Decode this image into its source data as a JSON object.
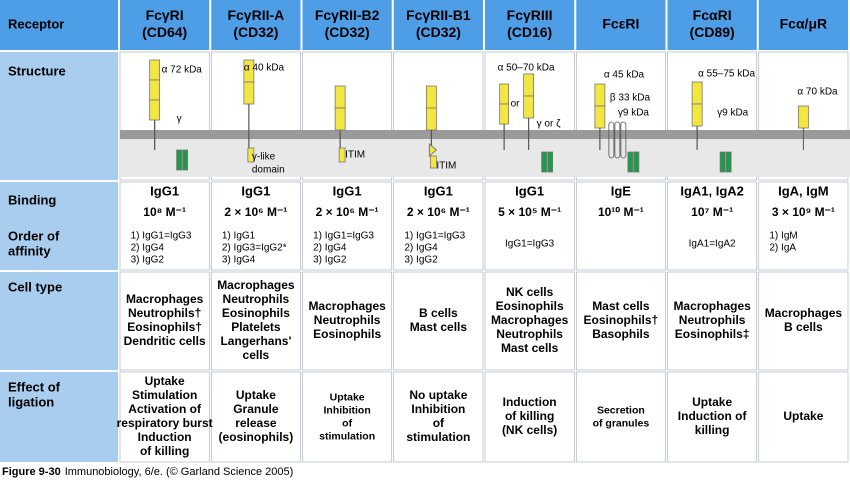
{
  "receptor_header": "Receptor",
  "row_labels": {
    "structure": "Structure",
    "binding": "Binding",
    "affinity": [
      "Order of",
      "affinity"
    ],
    "cell_type": "Cell type",
    "effect": [
      "Effect of",
      "ligation"
    ]
  },
  "columns": [
    {
      "name": [
        "FcγRI",
        "(CD64)"
      ],
      "structure": [
        "α 72 kDa",
        "γ"
      ],
      "ligand": "IgG1",
      "affinity": "10⁸ M⁻¹",
      "order": [
        "1) IgG1=IgG3",
        "2) IgG4",
        "3) IgG2"
      ],
      "cells": [
        "Macrophages",
        "Neutrophils†",
        "Eosinophils†",
        "Dendritic cells"
      ],
      "effect": [
        "Uptake",
        "Stimulation",
        "Activation of",
        "respiratory burst",
        "Induction",
        "of killing"
      ]
    },
    {
      "name": [
        "FcγRII-A",
        "(CD32)"
      ],
      "structure": [
        "α 40 kDa",
        "γ-like",
        "domain"
      ],
      "ligand": "IgG1",
      "affinity": "2 × 10⁶ M⁻¹",
      "order": [
        "1) IgG1",
        "2) IgG3=IgG2*",
        "3) IgG4"
      ],
      "cells": [
        "Macrophages",
        "Neutrophils",
        "Eosinophils",
        "Platelets",
        "Langerhans'",
        "cells"
      ],
      "effect": [
        "Uptake",
        "Granule",
        "release",
        "(eosinophils)"
      ]
    },
    {
      "name": [
        "FcγRII-B2",
        "(CD32)"
      ],
      "structure": [
        "ITIM"
      ],
      "ligand": "IgG1",
      "affinity": "2 × 10⁶ M⁻¹",
      "order": [
        "1) IgG1=IgG3",
        "2) IgG4",
        "3) IgG2"
      ],
      "cells": [
        "Macrophages",
        "Neutrophils",
        "Eosinophils"
      ],
      "effect": [
        "Uptake",
        "Inhibition",
        "of",
        "stimulation"
      ]
    },
    {
      "name": [
        "FcγRII-B1",
        "(CD32)"
      ],
      "structure": [
        "ITIM"
      ],
      "ligand": "IgG1",
      "affinity": "2 × 10⁶ M⁻¹",
      "order": [
        "1) IgG1=IgG3",
        "2) IgG4",
        "3) IgG2"
      ],
      "cells": [
        "B cells",
        "Mast cells"
      ],
      "effect": [
        "No uptake",
        "Inhibition",
        "of",
        "stimulation"
      ]
    },
    {
      "name": [
        "FcγRIII",
        "(CD16)"
      ],
      "structure": [
        "α 50–70 kDa",
        "or",
        "γ or ζ"
      ],
      "ligand": "IgG1",
      "affinity": "5 × 10⁵ M⁻¹",
      "order": [
        "IgG1=IgG3"
      ],
      "cells": [
        "NK cells",
        "Eosinophils",
        "Macrophages",
        "Neutrophils",
        "Mast cells"
      ],
      "effect": [
        "Induction",
        "of killing",
        "(NK cells)"
      ]
    },
    {
      "name": [
        "FcεRI"
      ],
      "structure": [
        "α 45 kDa",
        "β 33 kDa",
        "γ9 kDa"
      ],
      "ligand": "IgE",
      "affinity": "10¹⁰ M⁻¹",
      "order": [],
      "cells": [
        "Mast cells",
        "Eosinophils†",
        "Basophils"
      ],
      "effect": [
        "Secretion",
        "of granules"
      ]
    },
    {
      "name": [
        "FcαRI",
        "(CD89)"
      ],
      "structure": [
        "α 55–75 kDa",
        "γ9 kDa"
      ],
      "ligand": "IgA1, IgA2",
      "affinity": "10⁷ M⁻¹",
      "order": [
        "IgA1=IgA2"
      ],
      "cells": [
        "Macrophages",
        "Neutrophils",
        "Eosinophils‡"
      ],
      "effect": [
        "Uptake",
        "Induction of",
        "killing"
      ]
    },
    {
      "name": [
        "Fcα/μR"
      ],
      "structure": [
        "α 70 kDa"
      ],
      "ligand": "IgA, IgM",
      "affinity": "3 × 10⁹ M⁻¹",
      "order": [
        "1) IgM",
        "2) IgA"
      ],
      "cells": [
        "Macrophages",
        "B cells"
      ],
      "effect": [
        "Uptake"
      ]
    }
  ],
  "caption": {
    "figure": "Figure 9-30",
    "text": "Immunobiology, 6/e. (© Garland Science 2005)"
  }
}
